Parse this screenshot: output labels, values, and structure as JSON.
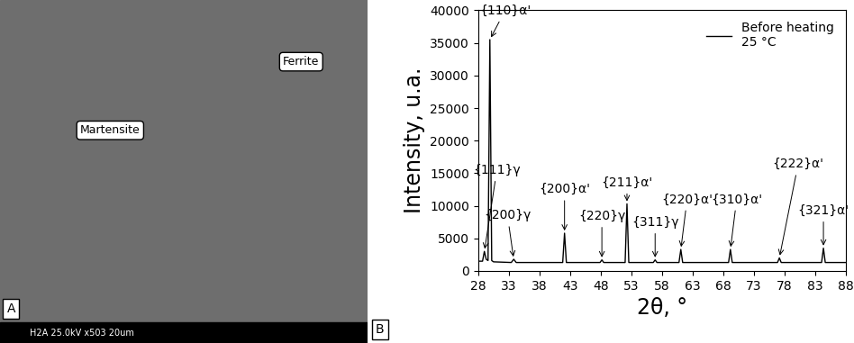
{
  "panels": [
    "A",
    "B"
  ],
  "image": {
    "labels": [
      "Martensite",
      "Ferrite"
    ],
    "caption": "H2A 25.0kV x503 20um"
  },
  "chart_data": {
    "type": "line",
    "x_label": "2θ, °",
    "y_label": "Intensity, u.a.",
    "xlim": [
      28,
      88
    ],
    "xticks": [
      28,
      33,
      38,
      43,
      48,
      53,
      58,
      63,
      68,
      73,
      78,
      83,
      88
    ],
    "ylim": [
      0,
      40000
    ],
    "yticks": [
      0,
      5000,
      10000,
      15000,
      20000,
      25000,
      30000,
      35000,
      40000
    ],
    "legend": "upper right",
    "series": [
      {
        "name": "Before heating\n25 °C",
        "color": "#000000",
        "x": [
          28,
          28.7,
          29.0,
          29.3,
          29.6,
          29.9,
          30.2,
          30.5,
          33.4,
          33.8,
          34.2,
          41.8,
          42.1,
          42.4,
          47.9,
          48.2,
          48.5,
          52.0,
          52.3,
          52.6,
          56.6,
          56.9,
          57.2,
          60.8,
          61.1,
          61.4,
          68.9,
          69.2,
          69.5,
          76.9,
          77.2,
          77.5,
          84.1,
          84.4,
          84.7,
          88
        ],
        "values": [
          1500,
          1500,
          3000,
          1800,
          1600,
          35500,
          1600,
          1400,
          1300,
          1800,
          1300,
          1300,
          5800,
          1300,
          1300,
          1700,
          1300,
          1300,
          10300,
          1300,
          1300,
          1700,
          1300,
          1300,
          3300,
          1300,
          1300,
          3300,
          1300,
          1300,
          2000,
          1300,
          1300,
          3500,
          1300,
          1300
        ]
      }
    ],
    "annotations": [
      {
        "text": "{111}γ",
        "x": 29.0,
        "y": 3000
      },
      {
        "text": "{110}α'",
        "x": 29.9,
        "y": 35500
      },
      {
        "text": "{200}γ",
        "x": 33.8,
        "y": 1800
      },
      {
        "text": "{200}α'",
        "x": 42.1,
        "y": 5800
      },
      {
        "text": "{220}γ",
        "x": 48.2,
        "y": 1700
      },
      {
        "text": "{211}α'",
        "x": 52.3,
        "y": 10300
      },
      {
        "text": "{311}γ",
        "x": 56.9,
        "y": 1700
      },
      {
        "text": "{220}α'",
        "x": 61.1,
        "y": 3300
      },
      {
        "text": "{310}α'",
        "x": 69.2,
        "y": 3300
      },
      {
        "text": "{222}α'",
        "x": 77.2,
        "y": 2000
      },
      {
        "text": "{321}α'",
        "x": 84.4,
        "y": 3500
      }
    ]
  }
}
